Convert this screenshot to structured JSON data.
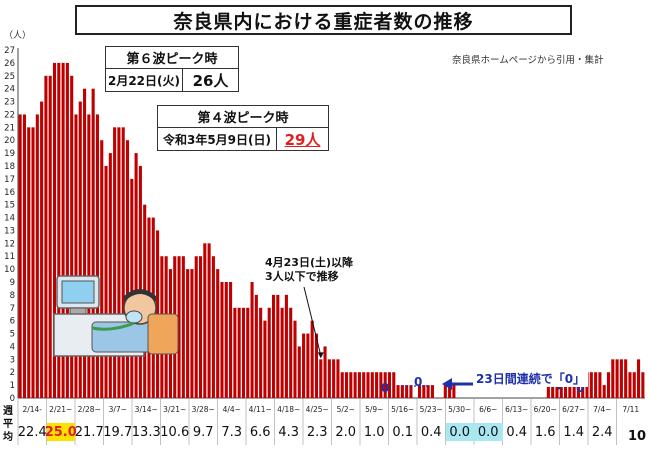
{
  "title": "奈良県内における重症者数の推移",
  "source_note": "奈良県ホームページから引用・集計",
  "y_unit": "（人）",
  "peak6": {
    "header": "第６波ピーク時",
    "date": "2月22日(火)",
    "value": "26人"
  },
  "peak4": {
    "header": "第４波ピーク時",
    "date": "令和3年5月9日(日)",
    "value": "29人"
  },
  "annotation": {
    "line1": "4月23日(土)以降",
    "line2": "3人以下で推移"
  },
  "zero_labels": [
    "0",
    "0",
    "0"
  ],
  "consecutive_note": "23日間連続で「0」",
  "avg_label": "週平均",
  "page_number": "10",
  "colors": {
    "bar": "#c00000",
    "arrow": "#1f2fa8",
    "highlight_yellow": "#ffe100",
    "highlight_cyan": "#a9e8f2"
  },
  "chart_data": {
    "type": "bar",
    "ylim": [
      0,
      27
    ],
    "yticks": [
      0,
      1,
      2,
      3,
      4,
      5,
      6,
      7,
      8,
      9,
      10,
      11,
      12,
      13,
      14,
      15,
      16,
      17,
      18,
      19,
      20,
      21,
      22,
      23,
      24,
      25,
      26,
      27
    ],
    "week_labels": [
      "2/14-",
      "2/21~",
      "2/28~",
      "3/7~",
      "3/14~",
      "3/21~",
      "3/28~",
      "4/4~",
      "4/11~",
      "4/18~",
      "4/25~",
      "5/2~",
      "5/9~",
      "5/16~",
      "5/23~",
      "5/30~",
      "6/6~",
      "6/13~",
      "6/20~",
      "6/27~",
      "7/4~",
      "7/11"
    ],
    "weekly_averages": [
      "22.4",
      "25.0",
      "21.7",
      "19.7",
      "13.3",
      "10.6",
      "9.7",
      "7.3",
      "6.6",
      "4.3",
      "2.3",
      "2.0",
      "1.0",
      "0.1",
      "0.4",
      "0.0",
      "0.0",
      "0.4",
      "1.6",
      "1.4",
      "2.4",
      ""
    ],
    "values": [
      22,
      22,
      21,
      21,
      22,
      23,
      25,
      25,
      26,
      26,
      26,
      26,
      25,
      22,
      23,
      24,
      22,
      24,
      22,
      20,
      18,
      19,
      21,
      21,
      21,
      20,
      17,
      19,
      18,
      15,
      14,
      14,
      13,
      11,
      11,
      10,
      11,
      11,
      11,
      10,
      10,
      11,
      11,
      12,
      12,
      11,
      10,
      9,
      9,
      9,
      7,
      7,
      7,
      7,
      9,
      8,
      7,
      6,
      7,
      8,
      8,
      7,
      8,
      7,
      6,
      4,
      5,
      5,
      6,
      5,
      3,
      4,
      3,
      3,
      3,
      2,
      2,
      2,
      2,
      2,
      2,
      2,
      2,
      2,
      2,
      2,
      2,
      2,
      1,
      1,
      1,
      1,
      0,
      1,
      1,
      1,
      1,
      0,
      0,
      1,
      1,
      1,
      0,
      0,
      0,
      0,
      0,
      0,
      0,
      0,
      0,
      0,
      0,
      0,
      0,
      0,
      0,
      0,
      0,
      0,
      0,
      0,
      0,
      1,
      2,
      2,
      2,
      2,
      2,
      1,
      1,
      1,
      2,
      2,
      2,
      2,
      1,
      2,
      3,
      3,
      3,
      3,
      2,
      2,
      3,
      2
    ]
  }
}
